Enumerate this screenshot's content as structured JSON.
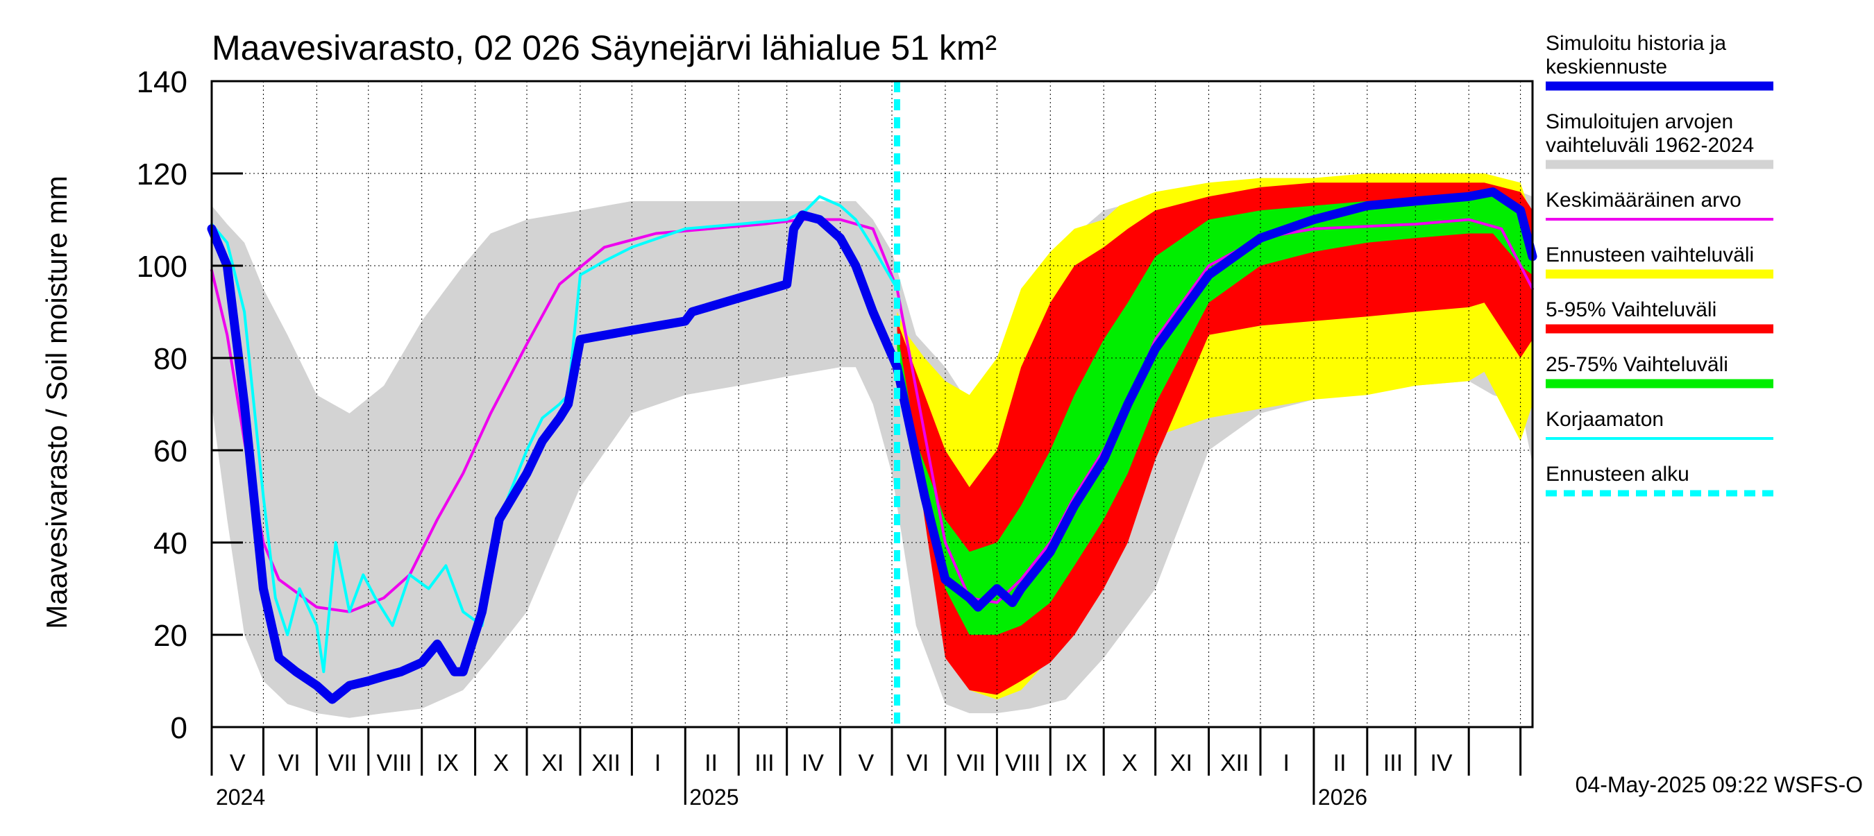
{
  "chart_data": {
    "type": "area",
    "title": "Maavesivarasto, 02 026 Säynejärvi lähialue 51 km²",
    "ylabel": "Maavesivarasto / Soil moisture   mm",
    "ylim": [
      0,
      140
    ],
    "yticks": [
      0,
      20,
      40,
      60,
      80,
      100,
      120,
      140
    ],
    "xlim": [
      "2024-04-01",
      "2026-05-08"
    ],
    "grid": true,
    "legend_position": "right",
    "forecast_start": "2025-05-04",
    "timestamp": "04-May-2025 09:22 WSFS-O",
    "year_labels": [
      {
        "date": "2024-04-01",
        "label": "2024"
      },
      {
        "date": "2025-01-01",
        "label": "2025"
      },
      {
        "date": "2026-01-01",
        "label": "2026"
      }
    ],
    "month_labels": [
      {
        "date": "2024-04-16",
        "label": "V"
      },
      {
        "date": "2024-05-16",
        "label": "VI"
      },
      {
        "date": "2024-06-16",
        "label": "VII"
      },
      {
        "date": "2024-07-16",
        "label": "VIII"
      },
      {
        "date": "2024-08-16",
        "label": "IX"
      },
      {
        "date": "2024-09-16",
        "label": "X"
      },
      {
        "date": "2024-10-16",
        "label": "XI"
      },
      {
        "date": "2024-11-16",
        "label": "XII"
      },
      {
        "date": "2024-12-16",
        "label": "I"
      },
      {
        "date": "2025-01-16",
        "label": "II"
      },
      {
        "date": "2025-02-16",
        "label": "III"
      },
      {
        "date": "2025-03-16",
        "label": "IV"
      },
      {
        "date": "2025-04-16",
        "label": "V"
      },
      {
        "date": "2025-05-16",
        "label": "VI"
      },
      {
        "date": "2025-06-16",
        "label": "VII"
      },
      {
        "date": "2025-07-16",
        "label": "VIII"
      },
      {
        "date": "2025-08-16",
        "label": "IX"
      },
      {
        "date": "2025-09-16",
        "label": "X"
      },
      {
        "date": "2025-10-16",
        "label": "XI"
      },
      {
        "date": "2025-11-16",
        "label": "XII"
      },
      {
        "date": "2025-12-16",
        "label": "I"
      },
      {
        "date": "2026-01-16",
        "label": "II"
      },
      {
        "date": "2026-02-16",
        "label": "III"
      },
      {
        "date": "2026-03-16",
        "label": "IV"
      }
    ],
    "month_bounds": [
      "2024-04-01",
      "2024-05-01",
      "2024-06-01",
      "2024-07-01",
      "2024-08-01",
      "2024-09-01",
      "2024-10-01",
      "2024-11-01",
      "2024-12-01",
      "2025-01-01",
      "2025-02-01",
      "2025-03-01",
      "2025-04-01",
      "2025-05-01",
      "2025-06-01",
      "2025-07-01",
      "2025-08-01",
      "2025-09-01",
      "2025-10-01",
      "2025-11-01",
      "2025-12-01",
      "2026-01-01",
      "2026-02-01",
      "2026-03-01",
      "2026-04-01",
      "2026-05-01"
    ],
    "legend": [
      {
        "label": [
          "Simuloitu historia ja",
          "keskiennuste"
        ],
        "color": "#0000ee",
        "style": "thick"
      },
      {
        "label": [
          "Simuloitujen arvojen",
          "vaihteluväli 1962-2024"
        ],
        "color": "#d3d3d3",
        "style": "band"
      },
      {
        "label": [
          "Keskimääräinen arvo"
        ],
        "color": "#ee00ee",
        "style": "line"
      },
      {
        "label": [
          "Ennusteen vaihteluväli"
        ],
        "color": "#ffff00",
        "style": "band"
      },
      {
        "label": [
          "5-95% Vaihteluväli"
        ],
        "color": "#ff0000",
        "style": "band"
      },
      {
        "label": [
          "25-75% Vaihteluväli"
        ],
        "color": "#00ee00",
        "style": "band"
      },
      {
        "label": [
          "Korjaamaton"
        ],
        "color": "#00ffff",
        "style": "line"
      },
      {
        "label": [
          "Ennusteen alku"
        ],
        "color": "#00ffff",
        "style": "dashed"
      }
    ],
    "series": [
      {
        "name": "Simuloitujen arvojen vaihteluväli 1962-2024",
        "kind": "band",
        "color": "#d3d3d3",
        "x": [
          "2024-04-01",
          "2024-04-10",
          "2024-04-20",
          "2024-05-01",
          "2024-05-15",
          "2024-06-01",
          "2024-06-20",
          "2024-07-10",
          "2024-08-01",
          "2024-08-25",
          "2024-09-10",
          "2024-10-01",
          "2024-11-01",
          "2024-12-01",
          "2025-01-01",
          "2025-02-01",
          "2025-03-01",
          "2025-04-01",
          "2025-04-10",
          "2025-04-20",
          "2025-05-01",
          "2025-05-15",
          "2025-06-01",
          "2025-06-15",
          "2025-07-01",
          "2025-07-20",
          "2025-08-10",
          "2025-09-01",
          "2025-10-01",
          "2025-11-01",
          "2025-12-01",
          "2026-01-01",
          "2026-02-01",
          "2026-03-01",
          "2026-04-01",
          "2026-04-15",
          "2026-05-01",
          "2026-05-08"
        ],
        "low": [
          70,
          45,
          20,
          10,
          5,
          3,
          2,
          3,
          4,
          8,
          15,
          25,
          52,
          68,
          72,
          74,
          76,
          78,
          78,
          70,
          55,
          22,
          5,
          3,
          3,
          4,
          6,
          15,
          30,
          60,
          68,
          71,
          73,
          74,
          75,
          72,
          70,
          57
        ],
        "high": [
          113,
          109,
          105,
          95,
          85,
          72,
          68,
          74,
          88,
          100,
          107,
          110,
          112,
          114,
          114,
          114,
          114,
          114,
          114,
          110,
          103,
          85,
          78,
          70,
          80,
          95,
          105,
          112,
          115,
          116,
          117,
          117,
          117,
          117,
          117,
          116,
          116,
          115
        ]
      },
      {
        "name": "Ennusteen vaihteluväli",
        "kind": "band",
        "color": "#ffff00",
        "x": [
          "2025-05-04",
          "2025-05-10",
          "2025-05-20",
          "2025-06-01",
          "2025-06-15",
          "2025-07-01",
          "2025-07-15",
          "2025-08-01",
          "2025-08-15",
          "2025-09-01",
          "2025-09-10",
          "2025-10-01",
          "2025-11-01",
          "2025-12-01",
          "2026-01-01",
          "2026-02-01",
          "2026-03-01",
          "2026-04-01",
          "2026-04-10",
          "2026-05-01",
          "2026-05-08"
        ],
        "low": [
          85,
          70,
          50,
          20,
          8,
          6,
          8,
          15,
          25,
          38,
          48,
          63,
          67,
          69,
          71,
          72,
          74,
          75,
          77,
          62,
          70
        ],
        "high": [
          90,
          85,
          80,
          75,
          72,
          80,
          95,
          103,
          108,
          110,
          113,
          116,
          118,
          119,
          119,
          120,
          120,
          120,
          120,
          118,
          110
        ]
      },
      {
        "name": "5-95% Vaihteluväli",
        "kind": "band",
        "color": "#ff0000",
        "x": [
          "2025-05-04",
          "2025-05-10",
          "2025-05-20",
          "2025-06-01",
          "2025-06-15",
          "2025-07-01",
          "2025-07-15",
          "2025-08-01",
          "2025-08-15",
          "2025-09-01",
          "2025-09-15",
          "2025-10-01",
          "2025-11-01",
          "2025-12-01",
          "2026-01-01",
          "2026-02-01",
          "2026-03-01",
          "2026-04-01",
          "2026-04-10",
          "2026-05-01",
          "2026-05-08"
        ],
        "low": [
          84,
          72,
          45,
          15,
          8,
          7,
          10,
          14,
          20,
          30,
          40,
          58,
          85,
          87,
          88,
          89,
          90,
          91,
          92,
          80,
          84
        ],
        "high": [
          88,
          82,
          72,
          60,
          52,
          60,
          78,
          92,
          100,
          104,
          108,
          112,
          115,
          117,
          118,
          118,
          118,
          118,
          118,
          116,
          112
        ]
      },
      {
        "name": "25-75% Vaihteluväli",
        "kind": "band",
        "color": "#00ee00",
        "x": [
          "2025-05-04",
          "2025-05-15",
          "2025-06-01",
          "2025-06-15",
          "2025-07-01",
          "2025-07-15",
          "2025-08-01",
          "2025-08-15",
          "2025-09-01",
          "2025-09-15",
          "2025-10-01",
          "2025-11-01",
          "2025-12-01",
          "2026-01-01",
          "2026-02-01",
          "2026-03-01",
          "2026-04-01",
          "2026-04-15",
          "2026-05-01",
          "2026-05-08"
        ],
        "low": [
          82,
          55,
          30,
          20,
          20,
          22,
          27,
          35,
          45,
          55,
          70,
          92,
          100,
          103,
          105,
          106,
          107,
          107,
          100,
          98
        ],
        "high": [
          86,
          62,
          45,
          38,
          40,
          48,
          60,
          72,
          84,
          92,
          102,
          110,
          112,
          113,
          114,
          114,
          115,
          115,
          113,
          106
        ]
      },
      {
        "name": "Keskimääräinen arvo",
        "kind": "line",
        "color": "#ee00ee",
        "x": [
          "2024-04-01",
          "2024-04-10",
          "2024-04-20",
          "2024-05-01",
          "2024-05-10",
          "2024-06-01",
          "2024-06-20",
          "2024-07-10",
          "2024-07-25",
          "2024-08-10",
          "2024-08-25",
          "2024-09-10",
          "2024-10-01",
          "2024-10-20",
          "2024-11-15",
          "2024-12-15",
          "2025-01-15",
          "2025-02-15",
          "2025-03-10",
          "2025-04-01",
          "2025-04-20",
          "2025-05-04",
          "2025-06-01",
          "2025-06-15",
          "2025-07-01",
          "2025-07-15",
          "2025-08-01",
          "2025-08-15",
          "2025-09-01",
          "2025-09-15",
          "2025-10-01",
          "2025-11-01",
          "2025-12-01",
          "2026-01-01",
          "2026-03-01",
          "2026-04-01",
          "2026-04-20",
          "2026-05-08"
        ],
        "y": [
          99,
          85,
          62,
          40,
          32,
          26,
          25,
          28,
          33,
          45,
          55,
          68,
          83,
          96,
          104,
          107,
          108,
          109,
          110,
          110,
          108,
          95,
          40,
          28,
          27,
          32,
          40,
          50,
          60,
          70,
          84,
          100,
          106,
          108,
          109,
          110,
          108,
          95
        ]
      },
      {
        "name": "Korjaamaton",
        "kind": "line",
        "color": "#00ffff",
        "x": [
          "2024-04-01",
          "2024-04-10",
          "2024-04-20",
          "2024-05-01",
          "2024-05-08",
          "2024-05-15",
          "2024-05-22",
          "2024-06-01",
          "2024-06-05",
          "2024-06-12",
          "2024-06-20",
          "2024-06-28",
          "2024-07-05",
          "2024-07-15",
          "2024-07-25",
          "2024-08-05",
          "2024-08-15",
          "2024-08-25",
          "2024-09-05",
          "2024-09-15",
          "2024-10-01",
          "2024-10-10",
          "2024-10-20",
          "2024-10-25",
          "2024-11-01",
          "2024-11-15",
          "2024-12-01",
          "2025-01-01",
          "2025-02-01",
          "2025-03-01",
          "2025-03-12",
          "2025-03-20",
          "2025-04-01",
          "2025-04-10",
          "2025-04-20",
          "2025-05-04"
        ],
        "y": [
          109,
          105,
          90,
          50,
          28,
          20,
          30,
          22,
          12,
          40,
          25,
          33,
          28,
          22,
          33,
          30,
          35,
          25,
          22,
          45,
          60,
          67,
          70,
          72,
          98,
          101,
          104,
          108,
          109,
          110,
          112,
          115,
          113,
          110,
          104,
          95
        ]
      },
      {
        "name": "Simuloitu historia ja keskiennuste",
        "kind": "line",
        "color": "#0000ee",
        "thick": true,
        "x": [
          "2024-04-01",
          "2024-04-10",
          "2024-04-20",
          "2024-05-01",
          "2024-05-10",
          "2024-05-20",
          "2024-06-01",
          "2024-06-10",
          "2024-06-20",
          "2024-07-01",
          "2024-07-10",
          "2024-07-20",
          "2024-08-01",
          "2024-08-10",
          "2024-08-20",
          "2024-08-25",
          "2024-09-05",
          "2024-09-15",
          "2024-10-01",
          "2024-10-10",
          "2024-10-20",
          "2024-10-25",
          "2024-11-01",
          "2024-12-01",
          "2025-01-01",
          "2025-01-05",
          "2025-02-01",
          "2025-03-01",
          "2025-03-05",
          "2025-03-10",
          "2025-03-20",
          "2025-04-01",
          "2025-04-10",
          "2025-04-20",
          "2025-05-04",
          "2025-05-20",
          "2025-06-01",
          "2025-06-15",
          "2025-06-20",
          "2025-07-01",
          "2025-07-10",
          "2025-07-15",
          "2025-08-01",
          "2025-08-15",
          "2025-09-01",
          "2025-09-15",
          "2025-10-01",
          "2025-11-01",
          "2025-12-01",
          "2026-01-01",
          "2026-02-01",
          "2026-03-01",
          "2026-04-01",
          "2026-04-15",
          "2026-05-01",
          "2026-05-08"
        ],
        "y": [
          108,
          100,
          70,
          30,
          15,
          12,
          9,
          6,
          9,
          10,
          11,
          12,
          14,
          18,
          12,
          12,
          25,
          45,
          55,
          62,
          67,
          70,
          84,
          86,
          88,
          90,
          93,
          96,
          108,
          111,
          110,
          106,
          100,
          90,
          78,
          50,
          32,
          28,
          26,
          30,
          27,
          30,
          38,
          48,
          58,
          70,
          82,
          98,
          106,
          110,
          113,
          114,
          115,
          116,
          112,
          102
        ]
      }
    ]
  }
}
